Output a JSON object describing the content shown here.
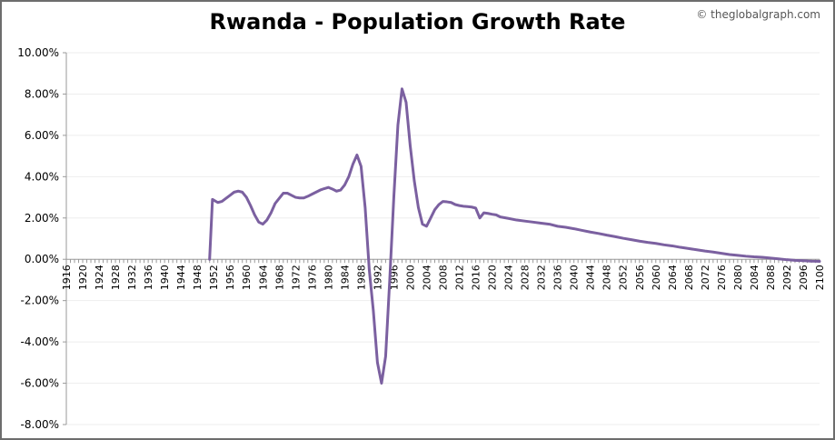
{
  "header": {
    "title": "Rwanda - Population Growth Rate",
    "credit": "© theglobalgraph.com"
  },
  "chart_data": {
    "type": "line",
    "title": "Rwanda - Population Growth Rate",
    "xlabel": "",
    "ylabel": "",
    "xlim": [
      1916,
      2100
    ],
    "ylim": [
      -8,
      10
    ],
    "y_ticks": [
      10,
      8,
      6,
      4,
      2,
      0,
      -2,
      -4,
      -6,
      -8
    ],
    "y_tick_labels": [
      "10.00%",
      "8.00%",
      "6.00%",
      "4.00%",
      "2.00%",
      "0.00%",
      "-2.00%",
      "-4.00%",
      "-6.00%",
      "-8.00%"
    ],
    "x_tick_labels": [
      "1916",
      "1920",
      "1924",
      "1928",
      "1932",
      "1936",
      "1940",
      "1944",
      "1948",
      "1952",
      "1956",
      "1960",
      "1964",
      "1968",
      "1972",
      "1976",
      "1980",
      "1984",
      "1988",
      "1992",
      "1996",
      "2000",
      "2004",
      "2008",
      "2012",
      "2016",
      "2020",
      "2024",
      "2028",
      "2032",
      "2036",
      "2040",
      "2044",
      "2048",
      "2052",
      "2056",
      "2060",
      "2064",
      "2068",
      "2072",
      "2076",
      "2080",
      "2084",
      "2088",
      "2092",
      "2096",
      "2100"
    ],
    "grid": true,
    "line_color": "#7b60a0",
    "series": [
      {
        "x": [
          1951,
          1951.7,
          1953,
          1954,
          1955,
          1956,
          1957,
          1958,
          1959,
          1960,
          1961,
          1962,
          1963,
          1964,
          1965,
          1966,
          1967,
          1968,
          1969,
          1970,
          1971,
          1972,
          1973,
          1974,
          1975,
          1976,
          1977,
          1978,
          1979,
          1980,
          1981,
          1982,
          1983,
          1984,
          1985,
          1986,
          1987,
          1988,
          1989,
          1990,
          1991,
          1992,
          1993,
          1994,
          1995,
          1996,
          1997,
          1998,
          1999,
          2000,
          2001,
          2002,
          2003,
          2004,
          2005,
          2006,
          2007,
          2008,
          2009,
          2010,
          2011,
          2012,
          2013,
          2014,
          2015,
          2016,
          2017,
          2018,
          2019,
          2020,
          2021,
          2022,
          2024,
          2026,
          2028,
          2030,
          2032,
          2034,
          2036,
          2038,
          2040,
          2042,
          2044,
          2046,
          2048,
          2050,
          2052,
          2054,
          2056,
          2058,
          2060,
          2062,
          2064,
          2066,
          2068,
          2070,
          2072,
          2074,
          2076,
          2078,
          2080,
          2082,
          2084,
          2086,
          2088,
          2090,
          2092,
          2094,
          2096,
          2098,
          2100
        ],
        "values": [
          0,
          2.9,
          2.75,
          2.8,
          2.95,
          3.1,
          3.25,
          3.3,
          3.25,
          3.0,
          2.6,
          2.15,
          1.8,
          1.7,
          1.9,
          2.25,
          2.7,
          2.95,
          3.2,
          3.2,
          3.1,
          3.0,
          2.97,
          2.97,
          3.05,
          3.15,
          3.25,
          3.35,
          3.42,
          3.48,
          3.4,
          3.3,
          3.35,
          3.6,
          4.0,
          4.6,
          5.05,
          4.5,
          2.5,
          -0.5,
          -2.5,
          -5.0,
          -6.0,
          -4.7,
          -1.0,
          3.0,
          6.5,
          8.25,
          7.6,
          5.5,
          3.8,
          2.5,
          1.7,
          1.6,
          2.0,
          2.4,
          2.65,
          2.8,
          2.78,
          2.75,
          2.65,
          2.6,
          2.57,
          2.55,
          2.53,
          2.48,
          2.0,
          2.25,
          2.22,
          2.18,
          2.15,
          2.05,
          1.98,
          1.9,
          1.85,
          1.8,
          1.75,
          1.7,
          1.6,
          1.55,
          1.48,
          1.4,
          1.32,
          1.25,
          1.17,
          1.1,
          1.02,
          0.95,
          0.88,
          0.82,
          0.77,
          0.7,
          0.65,
          0.58,
          0.52,
          0.46,
          0.4,
          0.35,
          0.29,
          0.23,
          0.19,
          0.15,
          0.12,
          0.1,
          0.06,
          0.02,
          -0.02,
          -0.05,
          -0.07,
          -0.09,
          -0.1
        ]
      }
    ]
  }
}
